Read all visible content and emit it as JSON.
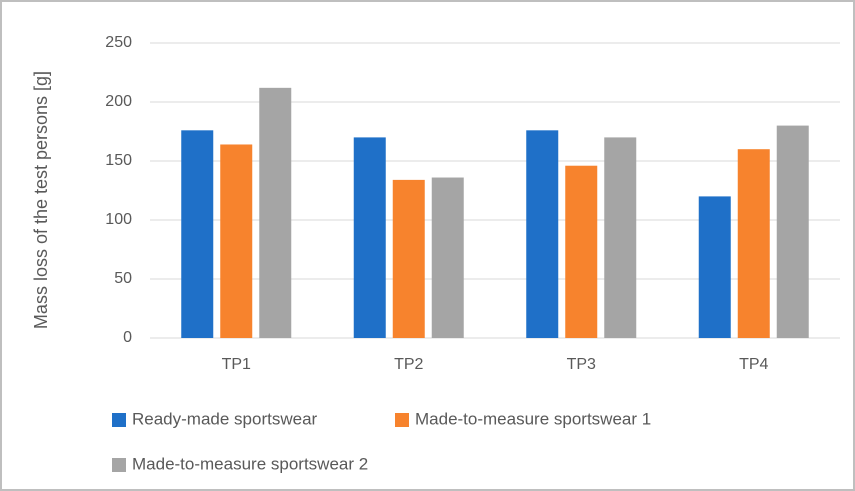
{
  "chart_data": {
    "type": "bar",
    "ylabel": "Mass loss of the test persons [g]",
    "categories": [
      "TP1",
      "TP2",
      "TP3",
      "TP4"
    ],
    "series": [
      {
        "name": "Ready-made sportswear",
        "color": "#1f70c8",
        "values": [
          176,
          170,
          176,
          120
        ]
      },
      {
        "name": "Made-to-measure sportswear 1",
        "color": "#f7832d",
        "values": [
          164,
          134,
          146,
          160
        ]
      },
      {
        "name": "Made-to-measure sportswear 2",
        "color": "#a5a5a5",
        "values": [
          212,
          136,
          170,
          180
        ]
      }
    ],
    "ylim": [
      0,
      250
    ],
    "yticks": [
      0,
      50,
      100,
      150,
      200,
      250
    ],
    "grid": true
  }
}
